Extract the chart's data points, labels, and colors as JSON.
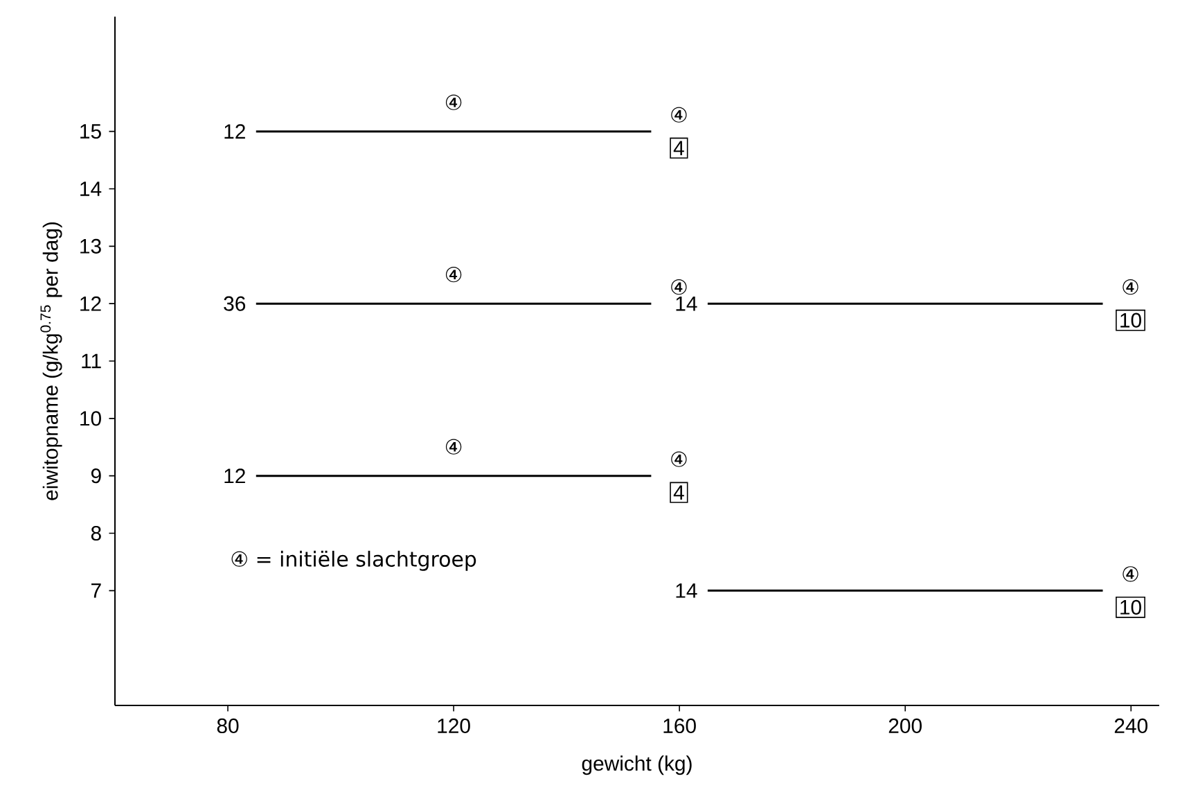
{
  "chart_data": {
    "type": "line",
    "xlabel": "gewicht (kg)",
    "ylabel": "eiwitopname (g/kg$^{0.75}$ per dag)",
    "xlim": [
      60,
      245
    ],
    "ylim": [
      5,
      17
    ],
    "xticks": [
      80,
      120,
      160,
      200,
      240
    ],
    "yticks": [
      7,
      8,
      9,
      10,
      11,
      12,
      13,
      14,
      15
    ],
    "series": [
      {
        "color": "#000000",
        "x": [
          85,
          155
        ],
        "values": [
          15,
          15
        ]
      },
      {
        "color": "#000000",
        "x": [
          85,
          155
        ],
        "values": [
          12,
          12
        ]
      },
      {
        "color": "#000000",
        "x": [
          165,
          235
        ],
        "values": [
          12,
          12
        ]
      },
      {
        "color": "#000000",
        "x": [
          85,
          155
        ],
        "values": [
          9,
          9
        ]
      },
      {
        "color": "#000000",
        "x": [
          165,
          235
        ],
        "values": [
          7,
          7
        ]
      }
    ],
    "annotations": [
      {
        "text": "12",
        "x": 85,
        "y": 15
      },
      {
        "text": "④",
        "x": 120,
        "y": 15
      },
      {
        "text": "④",
        "x": 155,
        "y": 15
      },
      {
        "text": "4",
        "x": 155,
        "y": 15
      },
      {
        "text": "36",
        "x": 85,
        "y": 12
      },
      {
        "text": "④",
        "x": 120,
        "y": 12
      },
      {
        "text": "④",
        "x": 155,
        "y": 12
      },
      {
        "text": "14",
        "x": 165,
        "y": 12
      },
      {
        "text": "④",
        "x": 235,
        "y": 12
      },
      {
        "text": "10",
        "x": 235,
        "y": 12
      },
      {
        "text": "12",
        "x": 85,
        "y": 9
      },
      {
        "text": "④",
        "x": 120,
        "y": 9
      },
      {
        "text": "④",
        "x": 155,
        "y": 9
      },
      {
        "text": "4",
        "x": 155,
        "y": 9
      },
      {
        "text": "14",
        "x": 165,
        "y": 7
      },
      {
        "text": "④",
        "x": 235,
        "y": 7
      },
      {
        "text": "10",
        "x": 235,
        "y": 7
      },
      "④ = initiële slachtgroep"
    ]
  }
}
